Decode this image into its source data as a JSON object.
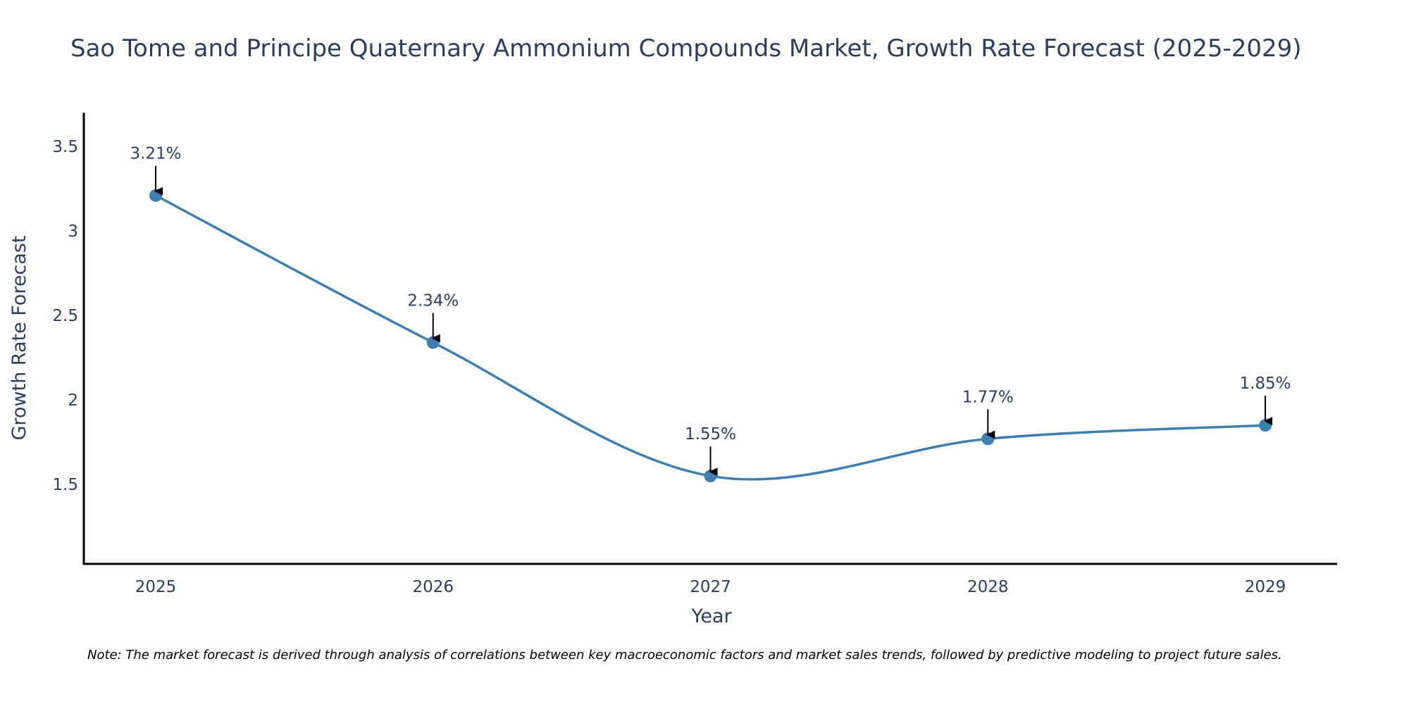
{
  "chart_data": {
    "type": "line",
    "title": "Sao Tome and Principe Quaternary Ammonium Compounds Market, Growth Rate Forecast (2025-2029)",
    "xlabel": "Year",
    "ylabel": "Growth Rate Forecast",
    "categories": [
      "2025",
      "2026",
      "2027",
      "2028",
      "2029"
    ],
    "values": [
      3.21,
      2.34,
      1.55,
      1.77,
      1.85
    ],
    "data_labels": [
      "3.21%",
      "2.34%",
      "1.55%",
      "1.77%",
      "1.85%"
    ],
    "yticks": [
      1.5,
      2,
      2.5,
      3,
      3.5
    ],
    "ytick_labels": [
      "1.5",
      "2",
      "2.5",
      "3",
      "3.5"
    ],
    "ylim": [
      1.03,
      3.7
    ],
    "grid": false,
    "line_shape": "spline",
    "colors": {
      "line": "#3e7fb0",
      "marker": "#3e7fb0",
      "axis": "#000000",
      "text": "#2a3f5f",
      "arrow": "#000000"
    }
  },
  "note": "Note: The market forecast is derived through analysis of correlations between key macroeconomic factors and market sales trends, followed by predictive modeling to project future sales."
}
